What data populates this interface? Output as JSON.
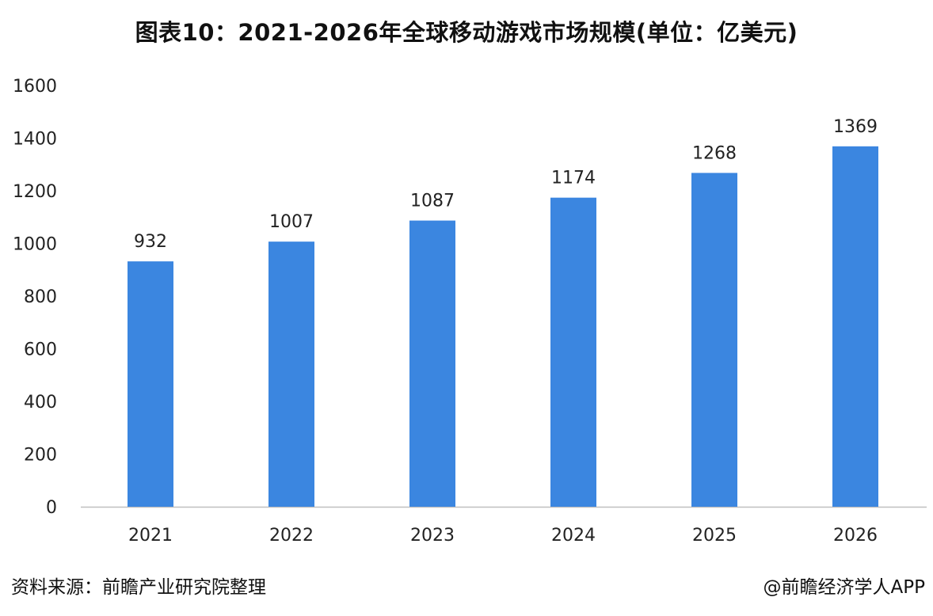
{
  "title": "图表10：2021-2026年全球移动游戏市场规模(单位：亿美元)",
  "footer": {
    "source": "资料来源：前瞻产业研究院整理",
    "credit": "@前瞻经济学人APP"
  },
  "colors": {
    "bar": "#3b86e0",
    "axis": "#bfbfbf"
  },
  "chart_data": {
    "type": "bar",
    "title": "图表10：2021-2026年全球移动游戏市场规模(单位：亿美元)",
    "xlabel": "",
    "ylabel": "",
    "categories": [
      "2021",
      "2022",
      "2023",
      "2024",
      "2025",
      "2026"
    ],
    "values": [
      932,
      1007,
      1087,
      1174,
      1268,
      1369
    ],
    "data_labels": [
      "932",
      "1007",
      "1087",
      "1174",
      "1268",
      "1369"
    ],
    "ylim": [
      0,
      1600
    ],
    "yticks": [
      "0",
      "200",
      "400",
      "600",
      "800",
      "1000",
      "1200",
      "1400",
      "1600"
    ],
    "grid": false,
    "legend": "none"
  }
}
